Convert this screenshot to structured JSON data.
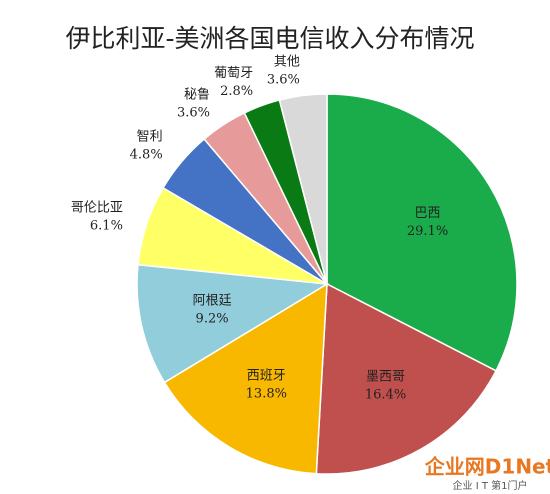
{
  "chart_data": {
    "type": "pie",
    "title": "伊比利亚-美洲各国电信收入分布情况",
    "categories": [
      "巴西",
      "墨西哥",
      "西班牙",
      "阿根廷",
      "哥伦比亚",
      "智利",
      "秘鲁",
      "葡萄牙",
      "其他"
    ],
    "values": [
      29.1,
      16.4,
      13.8,
      9.2,
      6.1,
      4.8,
      3.6,
      2.8,
      3.6
    ],
    "value_labels": [
      "29.1%",
      "16.4%",
      "13.8%",
      "9.2%",
      "6.1%",
      "4.8%",
      "3.6%",
      "2.8%",
      "3.6%"
    ],
    "colors": [
      "#1aab4a",
      "#c0504d",
      "#f9b800",
      "#92cddc",
      "#ffff66",
      "#4472c4",
      "#e69a9a",
      "#0a7a14",
      "#d9d9d9"
    ],
    "watermark": {
      "brand": "企业网D1Net",
      "slogan": "企业 I T 第1门户"
    }
  }
}
